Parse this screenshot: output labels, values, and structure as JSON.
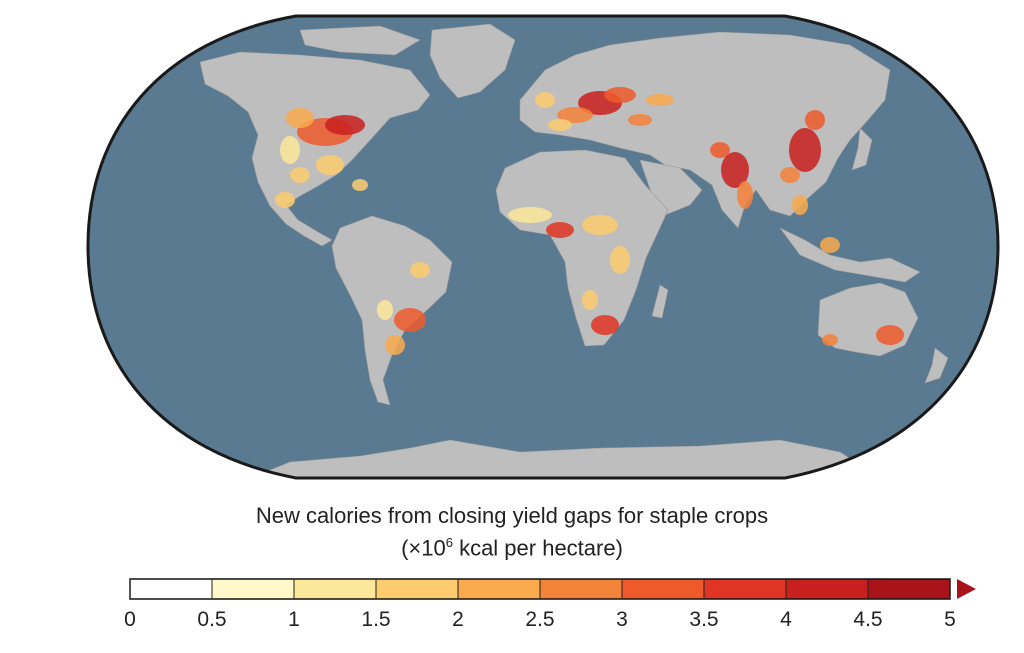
{
  "colors": {
    "ocean": "#5a7a92",
    "land": "#bebebe",
    "outline": "#1a1a1a",
    "scale": [
      "#ffffff",
      "#fff8c8",
      "#fde79a",
      "#fccc6e",
      "#f9aa4c",
      "#f4833a",
      "#ee5a2c",
      "#e03525",
      "#c8201f",
      "#a8141a"
    ]
  },
  "legend": {
    "title": "New calories from closing yield gaps for staple crops",
    "units_prefix": "(×10",
    "units_exp": "6",
    "units_suffix": " kcal per hectare)",
    "ticks": [
      "0",
      "0.5",
      "1",
      "1.5",
      "2",
      "2.5",
      "3",
      "3.5",
      "4",
      "4.5",
      "5"
    ],
    "min": 0,
    "max": 5,
    "extend": "max"
  }
}
